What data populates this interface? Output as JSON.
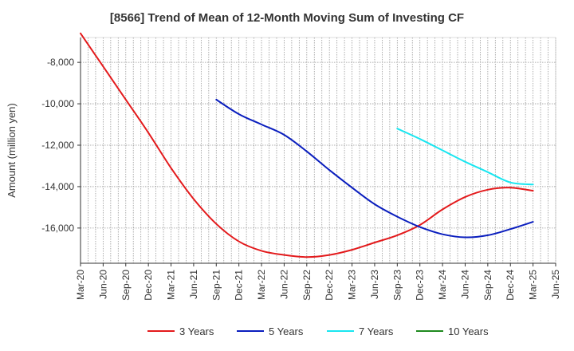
{
  "chart_data": {
    "type": "line",
    "title": "[8566]  Trend of Mean of 12-Month Moving Sum of Investing CF",
    "xlabel": "",
    "ylabel": "Amount (million yen)",
    "x_ticks": [
      "Mar-20",
      "Jun-20",
      "Sep-20",
      "Dec-20",
      "Mar-21",
      "Jun-21",
      "Sep-21",
      "Dec-21",
      "Mar-22",
      "Jun-22",
      "Sep-22",
      "Dec-22",
      "Mar-23",
      "Jun-23",
      "Sep-23",
      "Dec-23",
      "Mar-24",
      "Jun-24",
      "Sep-24",
      "Dec-24",
      "Mar-25",
      "Jun-25"
    ],
    "y_ticks": [
      -8000,
      -10000,
      -12000,
      -14000,
      -16000
    ],
    "y_tick_labels": [
      "-8,000",
      "-10,000",
      "-12,000",
      "-14,000",
      "-16,000"
    ],
    "ylim": [
      -17700,
      -6800
    ],
    "grid": true,
    "legend_position": "bottom",
    "series": [
      {
        "name": "3 Years",
        "color": "#e31a1c",
        "points": [
          [
            "Mar-20",
            -6600
          ],
          [
            "Jun-20",
            -8200
          ],
          [
            "Sep-20",
            -9800
          ],
          [
            "Dec-20",
            -11400
          ],
          [
            "Mar-21",
            -13100
          ],
          [
            "Jun-21",
            -14600
          ],
          [
            "Sep-21",
            -15800
          ],
          [
            "Dec-21",
            -16650
          ],
          [
            "Mar-22",
            -17100
          ],
          [
            "Jun-22",
            -17300
          ],
          [
            "Sep-22",
            -17400
          ],
          [
            "Dec-22",
            -17300
          ],
          [
            "Mar-23",
            -17050
          ],
          [
            "Jun-23",
            -16700
          ],
          [
            "Sep-23",
            -16350
          ],
          [
            "Dec-23",
            -15850
          ],
          [
            "Mar-24",
            -15100
          ],
          [
            "Jun-24",
            -14500
          ],
          [
            "Sep-24",
            -14150
          ],
          [
            "Dec-24",
            -14050
          ],
          [
            "Mar-25",
            -14200
          ]
        ]
      },
      {
        "name": "5 Years",
        "color": "#0a1ebe",
        "points": [
          [
            "Sep-21",
            -9800
          ],
          [
            "Dec-21",
            -10500
          ],
          [
            "Mar-22",
            -11000
          ],
          [
            "Jun-22",
            -11500
          ],
          [
            "Sep-22",
            -12300
          ],
          [
            "Dec-22",
            -13200
          ],
          [
            "Mar-23",
            -14050
          ],
          [
            "Jun-23",
            -14850
          ],
          [
            "Sep-23",
            -15450
          ],
          [
            "Dec-23",
            -15950
          ],
          [
            "Mar-24",
            -16300
          ],
          [
            "Jun-24",
            -16450
          ],
          [
            "Sep-24",
            -16350
          ],
          [
            "Dec-24",
            -16050
          ],
          [
            "Mar-25",
            -15700
          ]
        ]
      },
      {
        "name": "7 Years",
        "color": "#19e6f0",
        "points": [
          [
            "Sep-23",
            -11200
          ],
          [
            "Dec-23",
            -11700
          ],
          [
            "Mar-24",
            -12250
          ],
          [
            "Jun-24",
            -12800
          ],
          [
            "Sep-24",
            -13300
          ],
          [
            "Dec-24",
            -13800
          ],
          [
            "Mar-25",
            -13900
          ]
        ]
      },
      {
        "name": "10 Years",
        "color": "#1f8a1f",
        "points": []
      }
    ]
  }
}
